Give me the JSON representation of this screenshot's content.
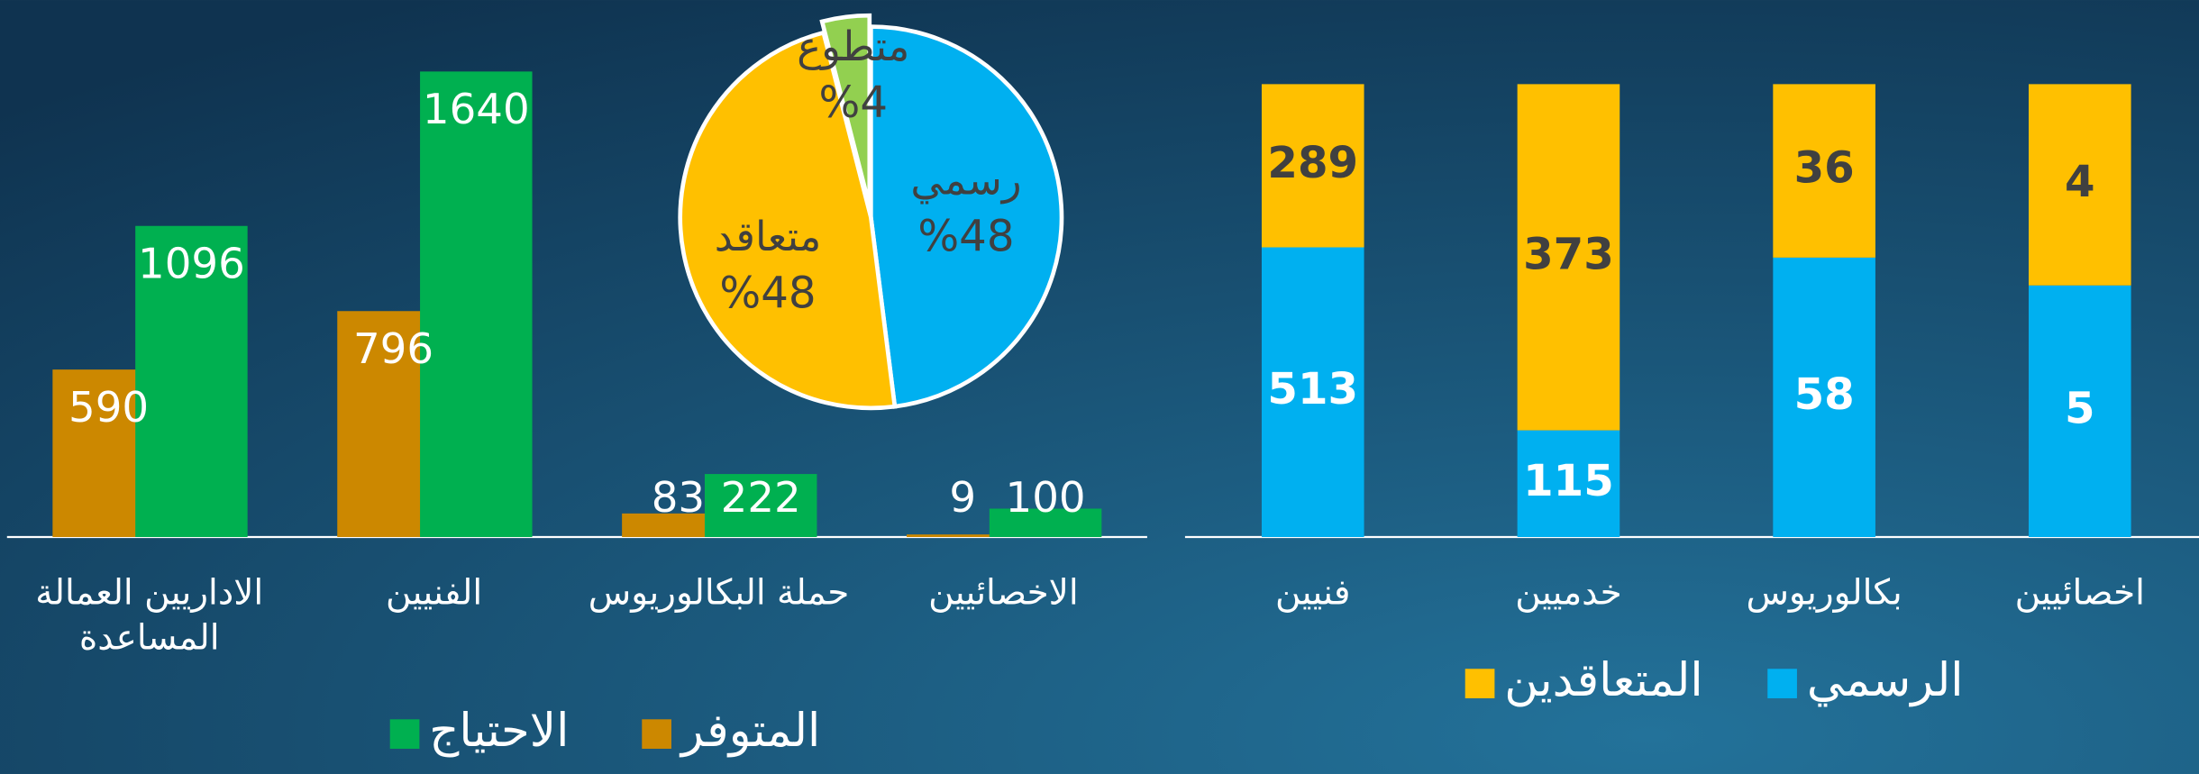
{
  "chart_data": [
    {
      "type": "bar",
      "stacking": "grouped",
      "legend": "bottom",
      "categories": [
        "الاداريين العمالة المساعدة",
        "الفنيين",
        "حملة البكالوريوس",
        "الاخصائيين"
      ],
      "series": [
        {
          "name": "المتوفر",
          "color": "#cc8800",
          "values": [
            590,
            796,
            83,
            9
          ]
        },
        {
          "name": "الاحتياج",
          "color": "#00b050",
          "values": [
            1096,
            1640,
            222,
            100
          ]
        }
      ]
    },
    {
      "type": "pie",
      "categories": [
        "رسمي",
        "متعاقد",
        "متطوع"
      ],
      "values": [
        48,
        48,
        4
      ],
      "value_labels": [
        "%48",
        "%48",
        "%4"
      ],
      "colors": [
        "#00b0f0",
        "#ffc000",
        "#92d050"
      ],
      "exploded": [
        false,
        false,
        true
      ]
    },
    {
      "type": "bar",
      "stacking": "percent",
      "legend": "bottom",
      "categories": [
        "فنيين",
        "خدميين",
        "بكالوريوس",
        "اخصائيين"
      ],
      "series": [
        {
          "name": "الرسمي",
          "color": "#00b0f0",
          "values": [
            513,
            115,
            58,
            5
          ]
        },
        {
          "name": "المتعاقدين",
          "color": "#ffc000",
          "values": [
            289,
            373,
            36,
            4
          ]
        }
      ]
    }
  ]
}
